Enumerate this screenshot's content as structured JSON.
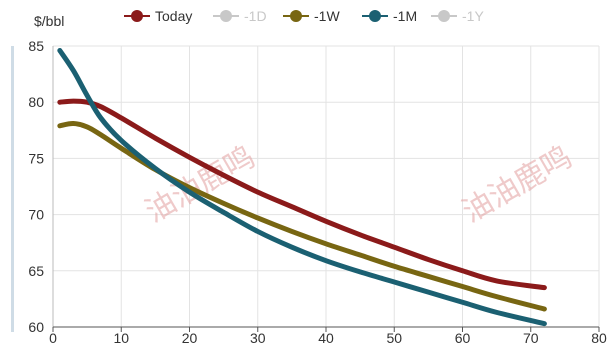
{
  "chart_data": {
    "type": "line",
    "ylabel": "$/bbl",
    "xlim": [
      0,
      80
    ],
    "ylim": [
      60,
      85
    ],
    "x_ticks": [
      "0",
      "10",
      "20",
      "30",
      "40",
      "50",
      "60",
      "70",
      "80"
    ],
    "y_ticks": [
      "60",
      "65",
      "70",
      "75",
      "80",
      "85"
    ],
    "grid": true,
    "legend_position": "top",
    "watermark": "油油鹿鸣",
    "series": [
      {
        "name": "Today",
        "color": "#8b1a1a",
        "visible": true,
        "x": [
          1,
          3,
          5,
          7,
          10,
          15,
          20,
          25,
          30,
          35,
          40,
          45,
          50,
          55,
          60,
          65,
          72
        ],
        "y": [
          80,
          80.1,
          80,
          79.6,
          78.6,
          76.8,
          75.1,
          73.5,
          72,
          70.7,
          69.4,
          68.2,
          67.1,
          66,
          65,
          64.1,
          63.5
        ]
      },
      {
        "name": "-1D",
        "color": "#c8c8c8",
        "visible": false,
        "x": [],
        "y": []
      },
      {
        "name": "-1W",
        "color": "#786612",
        "visible": true,
        "x": [
          1,
          3,
          5,
          7,
          10,
          15,
          20,
          25,
          30,
          35,
          40,
          45,
          50,
          55,
          60,
          65,
          72
        ],
        "y": [
          77.9,
          78.1,
          77.8,
          77.1,
          75.9,
          74,
          72.4,
          71,
          69.7,
          68.5,
          67.4,
          66.4,
          65.4,
          64.5,
          63.6,
          62.7,
          61.6
        ]
      },
      {
        "name": "-1M",
        "color": "#1b6072",
        "visible": true,
        "x": [
          1,
          3,
          5,
          7,
          10,
          15,
          20,
          25,
          30,
          35,
          40,
          45,
          50,
          55,
          60,
          65,
          72
        ],
        "y": [
          84.6,
          82.8,
          80.6,
          78.6,
          76.6,
          74.1,
          72,
          70.2,
          68.5,
          67.1,
          65.9,
          64.9,
          64,
          63.1,
          62.2,
          61.3,
          60.3
        ]
      },
      {
        "name": "-1Y",
        "color": "#c8c8c8",
        "visible": false,
        "x": [],
        "y": []
      }
    ]
  }
}
